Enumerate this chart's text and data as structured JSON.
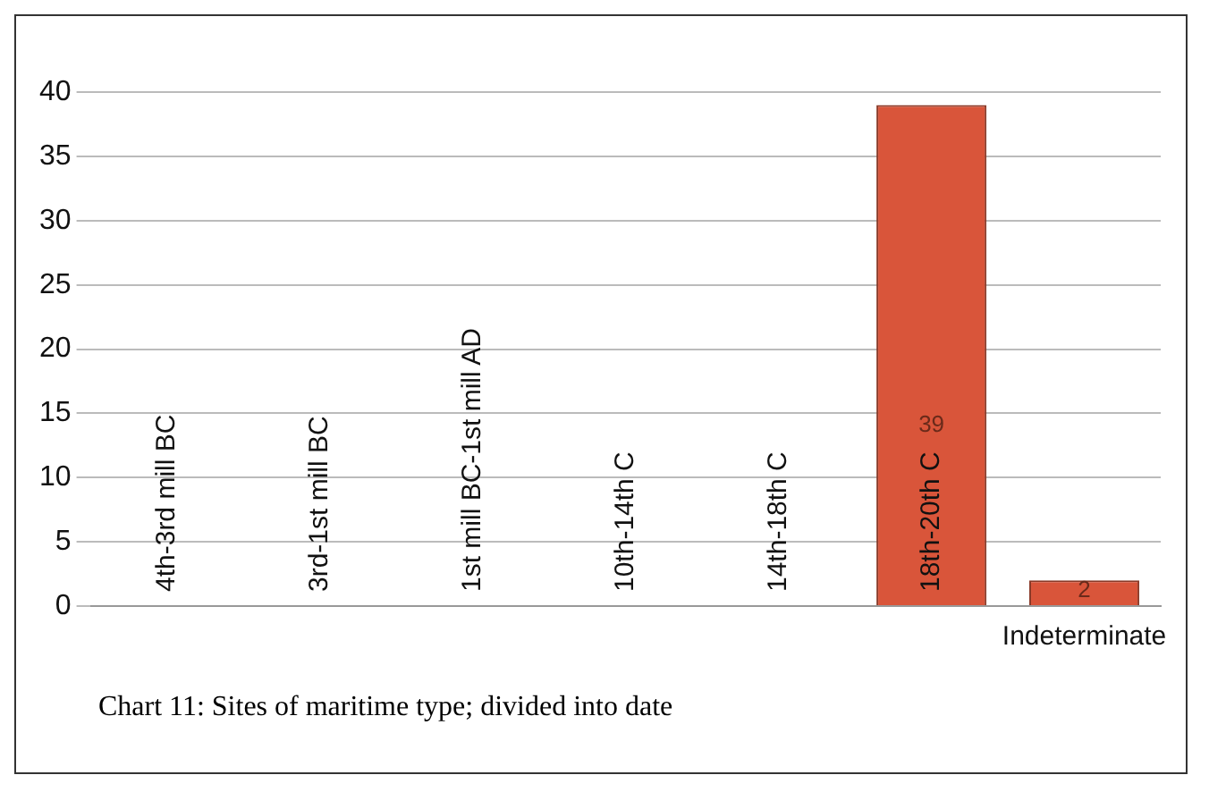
{
  "chart_data": {
    "type": "bar",
    "categories": [
      "4th-3rd mill BC",
      "3rd-1st mill BC",
      "1st mill BC-1st mill AD",
      "10th-14th C",
      "14th-18th C",
      "18th-20th C",
      "Indeterminate"
    ],
    "values": [
      0,
      0,
      0,
      0,
      0,
      39,
      2
    ],
    "value_labels": [
      null,
      null,
      null,
      null,
      null,
      "39",
      "2"
    ],
    "color": "#d9553a",
    "ylim": [
      0,
      40
    ],
    "yticks": [
      0,
      5,
      10,
      15,
      20,
      25,
      30,
      35,
      40
    ],
    "grid": "y",
    "annotations": [
      "Chart 11: Sites of maritime type; divided into date"
    ]
  }
}
